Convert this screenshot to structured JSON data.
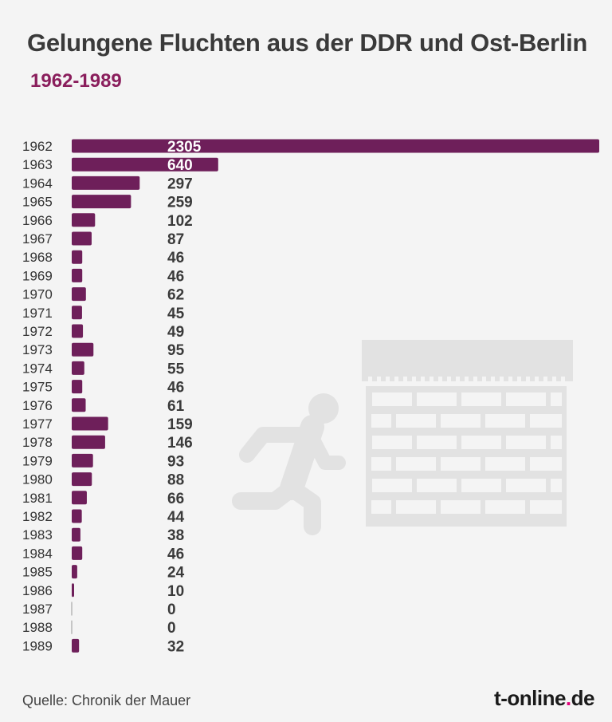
{
  "title": "Gelungene Fluchten aus der DDR und Ost-Berlin",
  "subtitle": "1962-1989",
  "source": "Quelle: Chronik der Mauer",
  "brand": {
    "pre": "t-online",
    "dot": ".",
    "post": "de"
  },
  "colors": {
    "bar": "#6e1f5a",
    "title": "#3a3a3a",
    "subtitle": "#8a1e5c",
    "illustration": "#e2e2e2",
    "brand_dot": "#e2007a"
  },
  "chart_data": {
    "type": "bar",
    "orientation": "horizontal",
    "categories": [
      "1962",
      "1963",
      "1964",
      "1965",
      "1966",
      "1967",
      "1968",
      "1969",
      "1970",
      "1971",
      "1972",
      "1973",
      "1974",
      "1975",
      "1976",
      "1977",
      "1978",
      "1979",
      "1980",
      "1981",
      "1982",
      "1983",
      "1984",
      "1985",
      "1986",
      "1987",
      "1988",
      "1989"
    ],
    "values": [
      2305,
      640,
      297,
      259,
      102,
      87,
      46,
      46,
      62,
      45,
      49,
      95,
      55,
      46,
      61,
      159,
      146,
      93,
      88,
      66,
      44,
      38,
      46,
      24,
      10,
      0,
      0,
      32
    ],
    "xlim": [
      0,
      2305
    ],
    "grid": false,
    "legend": "none",
    "data_labels": true
  },
  "illustration": {
    "icons": [
      "running-person-icon",
      "brick-wall-icon"
    ]
  }
}
